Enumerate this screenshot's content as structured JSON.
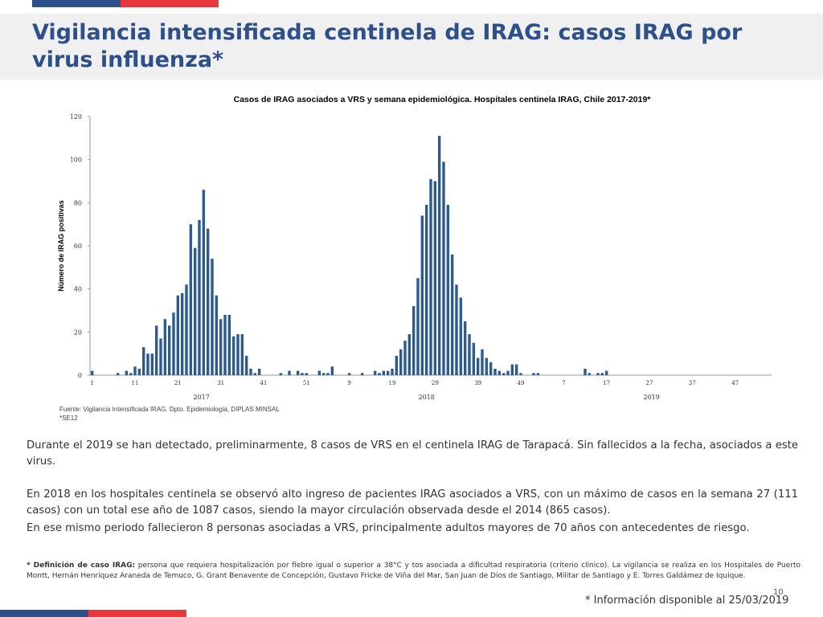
{
  "colors": {
    "brand_blue": "#2d4f8a",
    "brand_red": "#e8383d",
    "bar": "#2e5a8e"
  },
  "slide": {
    "title": "Vigilancia intensificada centinela de IRAG: casos IRAG por virus influenza*",
    "paragraph1": "Durante el 2019 se han detectado, preliminarmente, 8 casos de VRS en el centinela IRAG de Tarapacá. Sin fallecidos a la fecha, asociados a este virus.",
    "paragraph2": "En 2018 en los hospitales centinela se observó alto ingreso de pacientes IRAG asociados a VRS, con un máximo de casos en la semana 27 (111 casos) con un total ese año de 1087 casos, siendo la mayor circulación observada desde el 2014 (865 casos).",
    "paragraph3": "En ese mismo periodo fallecieron 8 personas asociadas a VRS, principalmente adultos mayores de 70 años con antecedentes de riesgo.",
    "footnote_label": "* Definición de caso IRAG:",
    "footnote_text": " persona que requiera hospitalización por fiebre igual o superior a 38°C y tos asociada a dificultad respiratoria (criterio clínico). La vigilancia se realiza en los Hospitales de Puerto Montt, Hernán Henríquez Araneda de  Temuco, G. Grant Benavente de Concepción, Gustavo Fricke de Viña del Mar, San Juan de Dios de Santiago, Militar de Santiago y E. Torres Galdámez de Iquique.",
    "info": "* Información disponible al 25/03/2019",
    "page_number": "10"
  },
  "chart_data": {
    "type": "bar",
    "title": "Casos de IRAG asociados a  VRS y semana epidemiológica.  Hospitales centinela IRAG, Chile 2017-2019*",
    "ylabel": "Número de IRAG positivas",
    "xlabel": "",
    "ylim": [
      0,
      120
    ],
    "yticks": [
      "0",
      "20",
      "40",
      "60",
      "80",
      "100",
      "120"
    ],
    "xtick_labels": [
      "1",
      "11",
      "21",
      "31",
      "41",
      "51",
      "9",
      "19",
      "29",
      "39",
      "49",
      "7",
      "17",
      "27",
      "37",
      "47"
    ],
    "year_labels": [
      "2017",
      "2018",
      "2019"
    ],
    "source_lines": [
      "Fuente: Vigilancia Intensificada IRAG. Dpto. Epidemiología, DIPLAS MINSAL",
      "*SE12"
    ],
    "series": [
      {
        "values": [
          2,
          0,
          0,
          0,
          0,
          0,
          1,
          0,
          2,
          1,
          4,
          3,
          13,
          10,
          10,
          23,
          17,
          26,
          23,
          29,
          37,
          38,
          42,
          70,
          59,
          72,
          86,
          68,
          54,
          37,
          26,
          28,
          28,
          18,
          19,
          19,
          9,
          3,
          1,
          3,
          0,
          0,
          0,
          0,
          1,
          0,
          2,
          0,
          2,
          1,
          1,
          0,
          0,
          2,
          1,
          1,
          4,
          0,
          0,
          0,
          1,
          0,
          0,
          1,
          0,
          0,
          2,
          1,
          2,
          2,
          3,
          9,
          12,
          16,
          19,
          32,
          45,
          74,
          79,
          91,
          90,
          111,
          99,
          79,
          56,
          42,
          36,
          25,
          19,
          15,
          8,
          12,
          8,
          6,
          3,
          2,
          1,
          2,
          5,
          5,
          1,
          0,
          0,
          1,
          1,
          0,
          0,
          0,
          0,
          0,
          0,
          0,
          0,
          0,
          0,
          3,
          1,
          0,
          1,
          1,
          2,
          0,
          0,
          0,
          0,
          0,
          0,
          0,
          0,
          0,
          0,
          0,
          0,
          0,
          0,
          0,
          0,
          0,
          0,
          0,
          0,
          0,
          0,
          0,
          0,
          0,
          0,
          0,
          0,
          0,
          0,
          0,
          0,
          0,
          0,
          0,
          0,
          0,
          0
        ]
      }
    ]
  }
}
